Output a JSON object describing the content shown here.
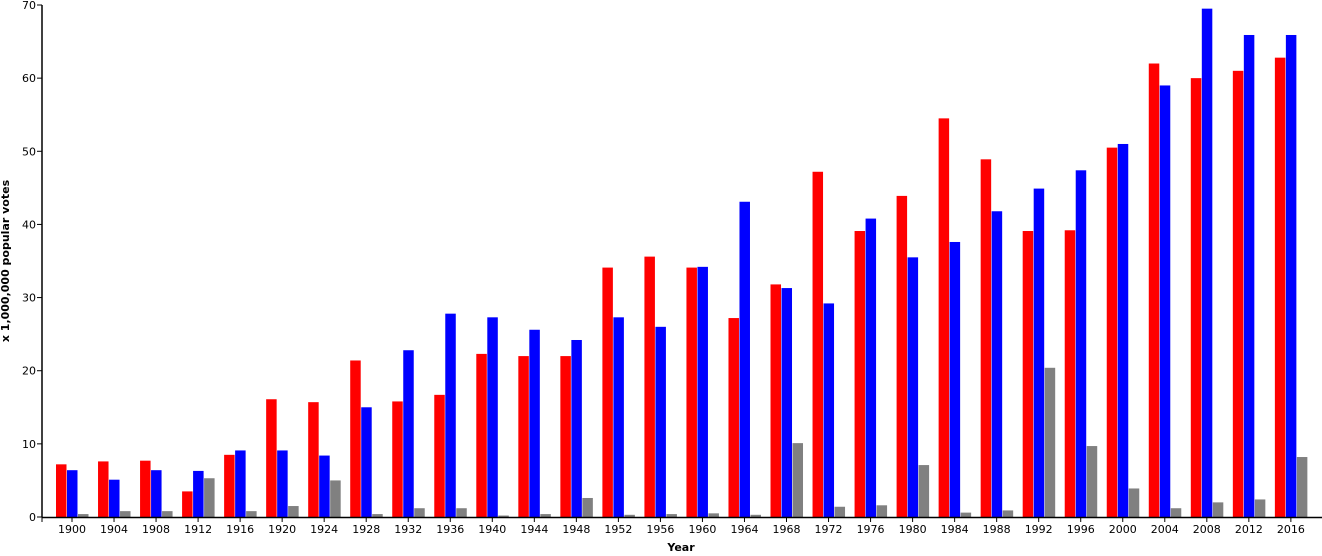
{
  "chart_data": {
    "type": "bar",
    "title": "",
    "xlabel": "Year",
    "ylabel": "x 1,000,000 popular votes",
    "ylim": [
      0,
      70
    ],
    "yticks": [
      0,
      10,
      20,
      30,
      40,
      50,
      60,
      70
    ],
    "grid": false,
    "categories": [
      "1900",
      "1904",
      "1908",
      "1912",
      "1916",
      "1920",
      "1924",
      "1928",
      "1932",
      "1936",
      "1940",
      "1944",
      "1948",
      "1952",
      "1956",
      "1960",
      "1964",
      "1968",
      "1972",
      "1976",
      "1980",
      "1984",
      "1988",
      "1992",
      "1996",
      "2000",
      "2004",
      "2008",
      "2012",
      "2016"
    ],
    "series": [
      {
        "color": "#ff0000",
        "values": [
          7.2,
          7.6,
          7.7,
          3.5,
          8.5,
          16.1,
          15.7,
          21.4,
          15.8,
          16.7,
          22.3,
          22.0,
          22.0,
          34.1,
          35.6,
          34.1,
          27.2,
          31.8,
          47.2,
          39.1,
          43.9,
          54.5,
          48.9,
          39.1,
          39.2,
          50.5,
          62.0,
          60.0,
          61.0,
          62.8
        ]
      },
      {
        "color": "#0000ff",
        "values": [
          6.4,
          5.1,
          6.4,
          6.3,
          9.1,
          9.1,
          8.4,
          15.0,
          22.8,
          27.8,
          27.3,
          25.6,
          24.2,
          27.3,
          26.0,
          34.2,
          43.1,
          31.3,
          29.2,
          40.8,
          35.5,
          37.6,
          41.8,
          44.9,
          47.4,
          51.0,
          59.0,
          69.5,
          65.9,
          65.9
        ]
      },
      {
        "color": "#808080",
        "values": [
          0.4,
          0.8,
          0.8,
          5.3,
          0.8,
          1.5,
          5.0,
          0.4,
          1.2,
          1.2,
          0.2,
          0.4,
          2.6,
          0.3,
          0.4,
          0.5,
          0.3,
          10.1,
          1.4,
          1.6,
          7.1,
          0.6,
          0.9,
          20.4,
          9.7,
          3.9,
          1.2,
          2.0,
          2.4,
          8.2
        ]
      }
    ]
  }
}
